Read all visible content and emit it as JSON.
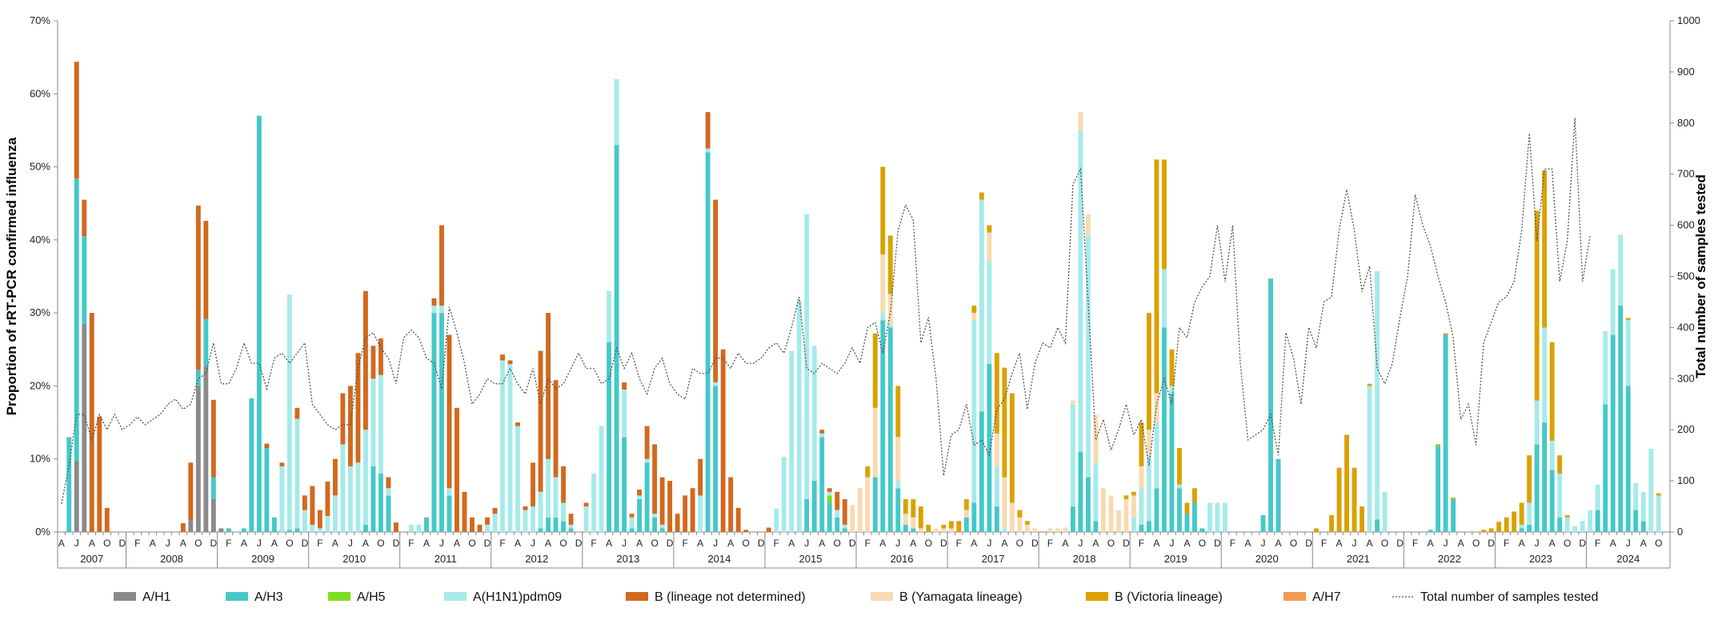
{
  "chart_data": {
    "type": "bar",
    "stacked": true,
    "ylabel": "Proportion of rRT-PCR confirmed influenza",
    "y2label": "Total number of samples tested",
    "ylim": [
      0,
      70
    ],
    "y2lim": [
      0,
      1000
    ],
    "y_ticks": [
      "0%",
      "10%",
      "20%",
      "30%",
      "40%",
      "50%",
      "60%",
      "70%"
    ],
    "y2_ticks": [
      "0",
      "100",
      "200",
      "300",
      "400",
      "500",
      "600",
      "700",
      "800",
      "900",
      "1000"
    ],
    "legend_position": "bottom",
    "month_letters": [
      "J",
      "F",
      "M",
      "A",
      "M",
      "J",
      "J",
      "A",
      "S",
      "O",
      "N",
      "D"
    ],
    "start_month": 4,
    "years": [
      "2007",
      "2008",
      "2009",
      "2010",
      "2011",
      "2012",
      "2013",
      "2014",
      "2015",
      "2016",
      "2017",
      "2018",
      "2019",
      "2020",
      "2021",
      "2022",
      "2023",
      "2024"
    ],
    "series": [
      {
        "key": "h1",
        "name": "A/H1",
        "color": "#8a8a8a"
      },
      {
        "key": "h3",
        "name": "A/H3",
        "color": "#45c8c8"
      },
      {
        "key": "h5",
        "name": "A/H5",
        "color": "#7ddf1f"
      },
      {
        "key": "pdm",
        "name": "A(H1N1)pdm09",
        "color": "#a6eaea"
      },
      {
        "key": "bnd",
        "name": "B (lineage not determined)",
        "color": "#d2691e"
      },
      {
        "key": "yam",
        "name": "B (Yamagata lineage)",
        "color": "#f8dab0"
      },
      {
        "key": "vic",
        "name": "B (Victoria lineage)",
        "color": "#daa100"
      },
      {
        "key": "h7",
        "name": "A/H7",
        "color": "#f39a55"
      }
    ],
    "line_series": {
      "name": "Total number of samples tested",
      "color": "#555555"
    },
    "bars": [
      {
        "month": "2007-05",
        "h1": 0,
        "h3": 13,
        "pdm": 0,
        "bnd": 0
      },
      {
        "month": "2007-06",
        "h1": 9.7,
        "h3": 38.7,
        "pdm": 0,
        "bnd": 16
      },
      {
        "month": "2007-07",
        "h1": 28.5,
        "h3": 12,
        "pdm": 0,
        "bnd": 5
      },
      {
        "month": "2007-08",
        "h1": 0,
        "h3": 0,
        "pdm": 0,
        "bnd": 30
      },
      {
        "month": "2007-09",
        "h1": 0,
        "h3": 0,
        "pdm": 0,
        "bnd": 15.8
      },
      {
        "month": "2007-10",
        "h1": 0,
        "h3": 0,
        "pdm": 0,
        "bnd": 3.3
      },
      {
        "month": "2008-08",
        "h3": 0,
        "bnd": 1.2
      },
      {
        "month": "2008-09",
        "h1": 1.6,
        "h3": 0,
        "bnd": 7.9
      },
      {
        "month": "2008-10",
        "h1": 20,
        "h3": 2.2,
        "pdm": 0,
        "bnd": 22.5
      },
      {
        "month": "2008-11",
        "h1": 22.7,
        "h3": 6.5,
        "bnd": 13.4
      },
      {
        "month": "2008-12",
        "h1": 4.5,
        "h3": 3,
        "bnd": 10.6
      },
      {
        "month": "2009-01",
        "h1": 0.5,
        "h3": 0
      },
      {
        "month": "2009-02",
        "h3": 0.5
      },
      {
        "month": "2009-04",
        "h3": 0.5
      },
      {
        "month": "2009-05",
        "h3": 18.3
      },
      {
        "month": "2009-06",
        "h3": 57
      },
      {
        "month": "2009-07",
        "h3": 11.5,
        "bnd": 0.6
      },
      {
        "month": "2009-08",
        "h3": 2,
        "pdm": 0
      },
      {
        "month": "2009-09",
        "pdm": 9,
        "bnd": 0.5
      },
      {
        "month": "2009-10",
        "h3": 0.3,
        "pdm": 32.2
      },
      {
        "month": "2009-11",
        "h3": 0.5,
        "pdm": 15,
        "bnd": 1.5
      },
      {
        "month": "2009-12",
        "pdm": 3,
        "bnd": 2
      },
      {
        "month": "2010-01",
        "pdm": 1,
        "bnd": 5.3
      },
      {
        "month": "2010-02",
        "pdm": 0.5,
        "bnd": 2.5
      },
      {
        "month": "2010-03",
        "pdm": 2.2,
        "bnd": 4.7
      },
      {
        "month": "2010-04",
        "pdm": 5,
        "bnd": 5
      },
      {
        "month": "2010-05",
        "pdm": 12,
        "bnd": 7
      },
      {
        "month": "2010-06",
        "pdm": 9,
        "bnd": 11
      },
      {
        "month": "2010-07",
        "pdm": 9.5,
        "bnd": 15
      },
      {
        "month": "2010-08",
        "h3": 1,
        "pdm": 13,
        "bnd": 19
      },
      {
        "month": "2010-09",
        "h3": 9,
        "pdm": 12,
        "bnd": 4.5
      },
      {
        "month": "2010-10",
        "h3": 8,
        "pdm": 13.5,
        "bnd": 5
      },
      {
        "month": "2010-11",
        "h3": 5,
        "pdm": 1,
        "bnd": 1.5
      },
      {
        "month": "2010-12",
        "bnd": 1.3
      },
      {
        "month": "2011-02",
        "pdm": 1
      },
      {
        "month": "2011-03",
        "pdm": 1
      },
      {
        "month": "2011-04",
        "h3": 2
      },
      {
        "month": "2011-05",
        "h3": 30,
        "pdm": 1,
        "bnd": 1
      },
      {
        "month": "2011-06",
        "h3": 30,
        "pdm": 1,
        "bnd": 11
      },
      {
        "month": "2011-07",
        "h3": 5,
        "pdm": 1,
        "bnd": 21
      },
      {
        "month": "2011-08",
        "pdm": 0,
        "bnd": 17
      },
      {
        "month": "2011-09",
        "bnd": 5.5
      },
      {
        "month": "2011-10",
        "bnd": 2
      },
      {
        "month": "2011-11",
        "bnd": 1
      },
      {
        "month": "2011-12",
        "pdm": 1,
        "bnd": 1
      },
      {
        "month": "2012-01",
        "pdm": 2.5,
        "bnd": 0.8
      },
      {
        "month": "2012-02",
        "pdm": 23.5,
        "bnd": 0.8
      },
      {
        "month": "2012-03",
        "pdm": 23,
        "bnd": 0.5
      },
      {
        "month": "2012-04",
        "pdm": 14.5,
        "bnd": 0.5
      },
      {
        "month": "2012-05",
        "pdm": 3,
        "bnd": 0.5
      },
      {
        "month": "2012-06",
        "pdm": 3.5,
        "bnd": 6
      },
      {
        "month": "2012-07",
        "h3": 0.5,
        "pdm": 5,
        "bnd": 19.3
      },
      {
        "month": "2012-08",
        "h3": 2,
        "pdm": 8,
        "bnd": 20
      },
      {
        "month": "2012-09",
        "h3": 2,
        "pdm": 5.5,
        "bnd": 13.3
      },
      {
        "month": "2012-10",
        "h3": 1.5,
        "pdm": 2.5,
        "bnd": 5
      },
      {
        "month": "2012-11",
        "h3": 0.5,
        "pdm": 0.5,
        "bnd": 1.5
      },
      {
        "month": "2013-01",
        "h3": 0,
        "pdm": 3.5,
        "bnd": 0.5
      },
      {
        "month": "2013-02",
        "pdm": 8
      },
      {
        "month": "2013-03",
        "pdm": 14.5
      },
      {
        "month": "2013-04",
        "h3": 26,
        "pdm": 7
      },
      {
        "month": "2013-05",
        "h3": 53,
        "pdm": 9
      },
      {
        "month": "2013-06",
        "h3": 13,
        "pdm": 6.5,
        "bnd": 1
      },
      {
        "month": "2013-07",
        "h3": 0.5,
        "pdm": 1.5,
        "bnd": 0.5
      },
      {
        "month": "2013-08",
        "h3": 4.5,
        "pdm": 0.5,
        "bnd": 0.8
      },
      {
        "month": "2013-09",
        "h3": 9.5,
        "pdm": 0.5,
        "bnd": 4.5
      },
      {
        "month": "2013-10",
        "h3": 2,
        "pdm": 0.5,
        "bnd": 9.5
      },
      {
        "month": "2013-11",
        "h3": 0.5,
        "pdm": 0.5,
        "bnd": 6.5
      },
      {
        "month": "2013-12",
        "bnd": 7
      },
      {
        "month": "2014-01",
        "bnd": 2.5
      },
      {
        "month": "2014-02",
        "bnd": 5
      },
      {
        "month": "2014-03",
        "bnd": 6
      },
      {
        "month": "2014-04",
        "h3": 0,
        "pdm": 5,
        "bnd": 5
      },
      {
        "month": "2014-05",
        "h3": 52,
        "pdm": 0.5,
        "bnd": 5
      },
      {
        "month": "2014-06",
        "h3": 20,
        "pdm": 0.5,
        "bnd": 25
      },
      {
        "month": "2014-07",
        "bnd": 25
      },
      {
        "month": "2014-08",
        "bnd": 7.5
      },
      {
        "month": "2014-09",
        "bnd": 3.3
      },
      {
        "month": "2014-10",
        "bnd": 0.3
      },
      {
        "month": "2015-01",
        "h3": 0,
        "bnd": 0.6
      },
      {
        "month": "2015-02",
        "pdm": 3.2
      },
      {
        "month": "2015-03",
        "pdm": 10.3
      },
      {
        "month": "2015-04",
        "pdm": 24.8
      },
      {
        "month": "2015-05",
        "pdm": 31.7
      },
      {
        "month": "2015-06",
        "h3": 4.5,
        "pdm": 39
      },
      {
        "month": "2015-07",
        "h3": 7,
        "pdm": 18.5
      },
      {
        "month": "2015-08",
        "h3": 13,
        "pdm": 0.5,
        "bnd": 0.5
      },
      {
        "month": "2015-09",
        "h3": 4,
        "h5": 1,
        "pdm": 0.5,
        "bnd": 0.5
      },
      {
        "month": "2015-10",
        "h3": 2,
        "pdm": 1,
        "bnd": 2.5
      },
      {
        "month": "2015-11",
        "h3": 0.5,
        "pdm": 0.5,
        "bnd": 3.5
      },
      {
        "month": "2015-12",
        "yam": 3.7,
        "vic": 0
      },
      {
        "month": "2016-01",
        "yam": 6,
        "vic": 0
      },
      {
        "month": "2016-02",
        "yam": 7.5,
        "vic": 1.5
      },
      {
        "month": "2016-03",
        "h3": 7.5,
        "yam": 9.5,
        "vic": 10.2
      },
      {
        "month": "2016-04",
        "h3": 29,
        "pdm": 1,
        "yam": 8,
        "vic": 12
      },
      {
        "month": "2016-05",
        "h3": 28,
        "pdm": 0.5,
        "yam": 4.1,
        "vic": 8
      },
      {
        "month": "2016-06",
        "h3": 6,
        "pdm": 1,
        "yam": 6,
        "vic": 7
      },
      {
        "month": "2016-07",
        "h3": 1,
        "yam": 1.5,
        "vic": 2
      },
      {
        "month": "2016-08",
        "h3": 0.5,
        "yam": 1.5,
        "vic": 2.5
      },
      {
        "month": "2016-09",
        "h3": 0,
        "yam": 0.5,
        "vic": 3
      },
      {
        "month": "2016-10",
        "yam": 0,
        "vic": 1
      },
      {
        "month": "2016-11",
        "yam": 0.5,
        "vic": 0
      },
      {
        "month": "2016-12",
        "yam": 0.5,
        "vic": 0.5
      },
      {
        "month": "2017-01",
        "yam": 0.5,
        "vic": 1
      },
      {
        "month": "2017-02",
        "yam": 0,
        "vic": 1.5
      },
      {
        "month": "2017-03",
        "h3": 2,
        "yam": 1,
        "vic": 1.5
      },
      {
        "month": "2017-04",
        "h3": 4,
        "pdm": 25,
        "yam": 1,
        "vic": 1
      },
      {
        "month": "2017-05",
        "h3": 16.5,
        "pdm": 29,
        "vic": 1
      },
      {
        "month": "2017-06",
        "h3": 23,
        "pdm": 14,
        "yam": 4,
        "vic": 1
      },
      {
        "month": "2017-07",
        "h3": 3.5,
        "pdm": 5.5,
        "yam": 4.5,
        "vic": 11
      },
      {
        "month": "2017-08",
        "h3": 0,
        "pdm": 0.5,
        "yam": 7,
        "vic": 15
      },
      {
        "month": "2017-09",
        "yam": 4,
        "vic": 15
      },
      {
        "month": "2017-10",
        "yam": 2,
        "vic": 1
      },
      {
        "month": "2017-11",
        "yam": 1,
        "vic": 0.5
      },
      {
        "month": "2017-12",
        "yam": 0.5
      },
      {
        "month": "2018-02",
        "yam": 0.5
      },
      {
        "month": "2018-03",
        "yam": 0.5
      },
      {
        "month": "2018-04",
        "yam": 0.6
      },
      {
        "month": "2018-05",
        "h3": 3.5,
        "pdm": 14,
        "yam": 0.5
      },
      {
        "month": "2018-06",
        "h3": 11,
        "pdm": 44,
        "yam": 2.5
      },
      {
        "month": "2018-07",
        "h3": 7.5,
        "pdm": 33,
        "yam": 3
      },
      {
        "month": "2018-08",
        "h3": 1.5,
        "pdm": 8,
        "yam": 6.5
      },
      {
        "month": "2018-09",
        "yam": 6
      },
      {
        "month": "2018-10",
        "yam": 5
      },
      {
        "month": "2018-11",
        "yam": 3
      },
      {
        "month": "2018-12",
        "yam": 4.5,
        "vic": 0.5
      },
      {
        "month": "2019-01",
        "pdm": 2,
        "yam": 3,
        "vic": 0.5
      },
      {
        "month": "2019-02",
        "h3": 1,
        "pdm": 5,
        "yam": 3,
        "vic": 6
      },
      {
        "month": "2019-03",
        "h3": 1.5,
        "pdm": 9,
        "yam": 3.5,
        "vic": 16
      },
      {
        "month": "2019-04",
        "h3": 6,
        "pdm": 9,
        "yam": 4,
        "vic": 32
      },
      {
        "month": "2019-05",
        "h3": 28,
        "pdm": 8,
        "vic": 15
      },
      {
        "month": "2019-06",
        "h3": 19,
        "pdm": 1,
        "vic": 5
      },
      {
        "month": "2019-07",
        "h3": 6,
        "pdm": 0.5,
        "vic": 5
      },
      {
        "month": "2019-08",
        "h3": 2.5,
        "yam": 0,
        "vic": 1.5
      },
      {
        "month": "2019-09",
        "h3": 4,
        "vic": 2
      },
      {
        "month": "2019-10",
        "h3": 0.5
      },
      {
        "month": "2019-11",
        "pdm": 4
      },
      {
        "month": "2019-12",
        "pdm": 4
      },
      {
        "month": "2020-01",
        "pdm": 4
      },
      {
        "month": "2020-06",
        "h3": 2.3
      },
      {
        "month": "2020-07",
        "h3": 34.7
      },
      {
        "month": "2020-08",
        "h3": 10
      },
      {
        "month": "2021-01",
        "vic": 0.5
      },
      {
        "month": "2021-03",
        "vic": 2.3
      },
      {
        "month": "2021-04",
        "vic": 8.8
      },
      {
        "month": "2021-05",
        "vic": 13.3
      },
      {
        "month": "2021-06",
        "vic": 8.8
      },
      {
        "month": "2021-07",
        "vic": 3.5
      },
      {
        "month": "2021-08",
        "h3": 0,
        "pdm": 20,
        "vic": 0.3
      },
      {
        "month": "2021-09",
        "h3": 1.7,
        "pdm": 34
      },
      {
        "month": "2021-10",
        "pdm": 5.5
      },
      {
        "month": "2022-04",
        "h3": 0.3
      },
      {
        "month": "2022-05",
        "h3": 11.8,
        "vic": 0.2
      },
      {
        "month": "2022-06",
        "h3": 27,
        "vic": 0.2
      },
      {
        "month": "2022-07",
        "h3": 4.5,
        "vic": 0.2
      },
      {
        "month": "2022-11",
        "vic": 0.3
      },
      {
        "month": "2022-12",
        "vic": 0.5
      },
      {
        "month": "2023-01",
        "vic": 1.4
      },
      {
        "month": "2023-02",
        "vic": 2
      },
      {
        "month": "2023-03",
        "vic": 2.8
      },
      {
        "month": "2023-04",
        "h3": 0.5,
        "pdm": 0.5,
        "vic": 3
      },
      {
        "month": "2023-05",
        "h3": 1,
        "pdm": 3,
        "vic": 6.5
      },
      {
        "month": "2023-06",
        "h3": 12,
        "pdm": 6,
        "vic": 26
      },
      {
        "month": "2023-07",
        "h3": 15,
        "pdm": 13,
        "vic": 21.5
      },
      {
        "month": "2023-08",
        "h3": 8.5,
        "pdm": 4,
        "vic": 13.5
      },
      {
        "month": "2023-09",
        "h3": 2,
        "pdm": 6,
        "vic": 2.5
      },
      {
        "month": "2023-10",
        "pdm": 2,
        "vic": 0.3
      },
      {
        "month": "2023-11",
        "pdm": 0.8
      },
      {
        "month": "2023-12",
        "pdm": 1.5
      },
      {
        "month": "2024-01",
        "pdm": 3
      },
      {
        "month": "2024-02",
        "h3": 3,
        "pdm": 3.5
      },
      {
        "month": "2024-03",
        "h3": 17.5,
        "pdm": 10
      },
      {
        "month": "2024-04",
        "h3": 27,
        "pdm": 9
      },
      {
        "month": "2024-05",
        "h3": 31,
        "pdm": 9.7
      },
      {
        "month": "2024-06",
        "h3": 20,
        "pdm": 9,
        "vic": 0.3
      },
      {
        "month": "2024-07",
        "h3": 3,
        "pdm": 3.7
      },
      {
        "month": "2024-08",
        "h3": 1.5,
        "pdm": 4
      },
      {
        "month": "2024-09",
        "pdm": 11.4
      },
      {
        "month": "2024-10",
        "pdm": 5,
        "vic": 0.3
      }
    ],
    "total_samples": [
      55,
      130,
      230,
      230,
      180,
      230,
      200,
      230,
      200,
      210,
      225,
      210,
      220,
      230,
      250,
      260,
      240,
      250,
      300,
      310,
      370,
      290,
      290,
      320,
      370,
      330,
      330,
      280,
      340,
      350,
      330,
      350,
      370,
      250,
      230,
      210,
      200,
      210,
      210,
      320,
      380,
      390,
      360,
      340,
      290,
      380,
      395,
      380,
      340,
      330,
      280,
      440,
      390,
      330,
      250,
      270,
      300,
      290,
      290,
      320,
      290,
      270,
      320,
      250,
      300,
      280,
      290,
      320,
      350,
      320,
      320,
      290,
      300,
      360,
      320,
      350,
      300,
      270,
      320,
      340,
      290,
      270,
      260,
      320,
      310,
      310,
      340,
      340,
      320,
      350,
      330,
      330,
      340,
      360,
      370,
      350,
      400,
      460,
      320,
      310,
      330,
      320,
      310,
      330,
      360,
      330,
      400,
      410,
      350,
      430,
      590,
      640,
      610,
      370,
      420,
      300,
      110,
      190,
      200,
      250,
      170,
      180,
      150,
      240,
      260,
      310,
      350,
      240,
      330,
      370,
      360,
      400,
      370,
      680,
      710,
      450,
      180,
      220,
      160,
      200,
      250,
      190,
      220,
      130,
      250,
      300,
      250,
      400,
      380,
      450,
      480,
      500,
      600,
      490,
      600,
      330,
      180,
      190,
      200,
      230,
      150,
      390,
      340,
      250,
      400,
      360,
      450,
      460,
      590,
      670,
      590,
      470,
      520,
      320,
      290,
      330,
      420,
      500,
      660,
      600,
      560,
      500,
      450,
      380,
      220,
      250,
      170,
      370,
      410,
      450,
      460,
      490,
      590,
      780,
      570,
      710,
      710,
      490,
      570,
      810,
      490,
      580
    ]
  }
}
